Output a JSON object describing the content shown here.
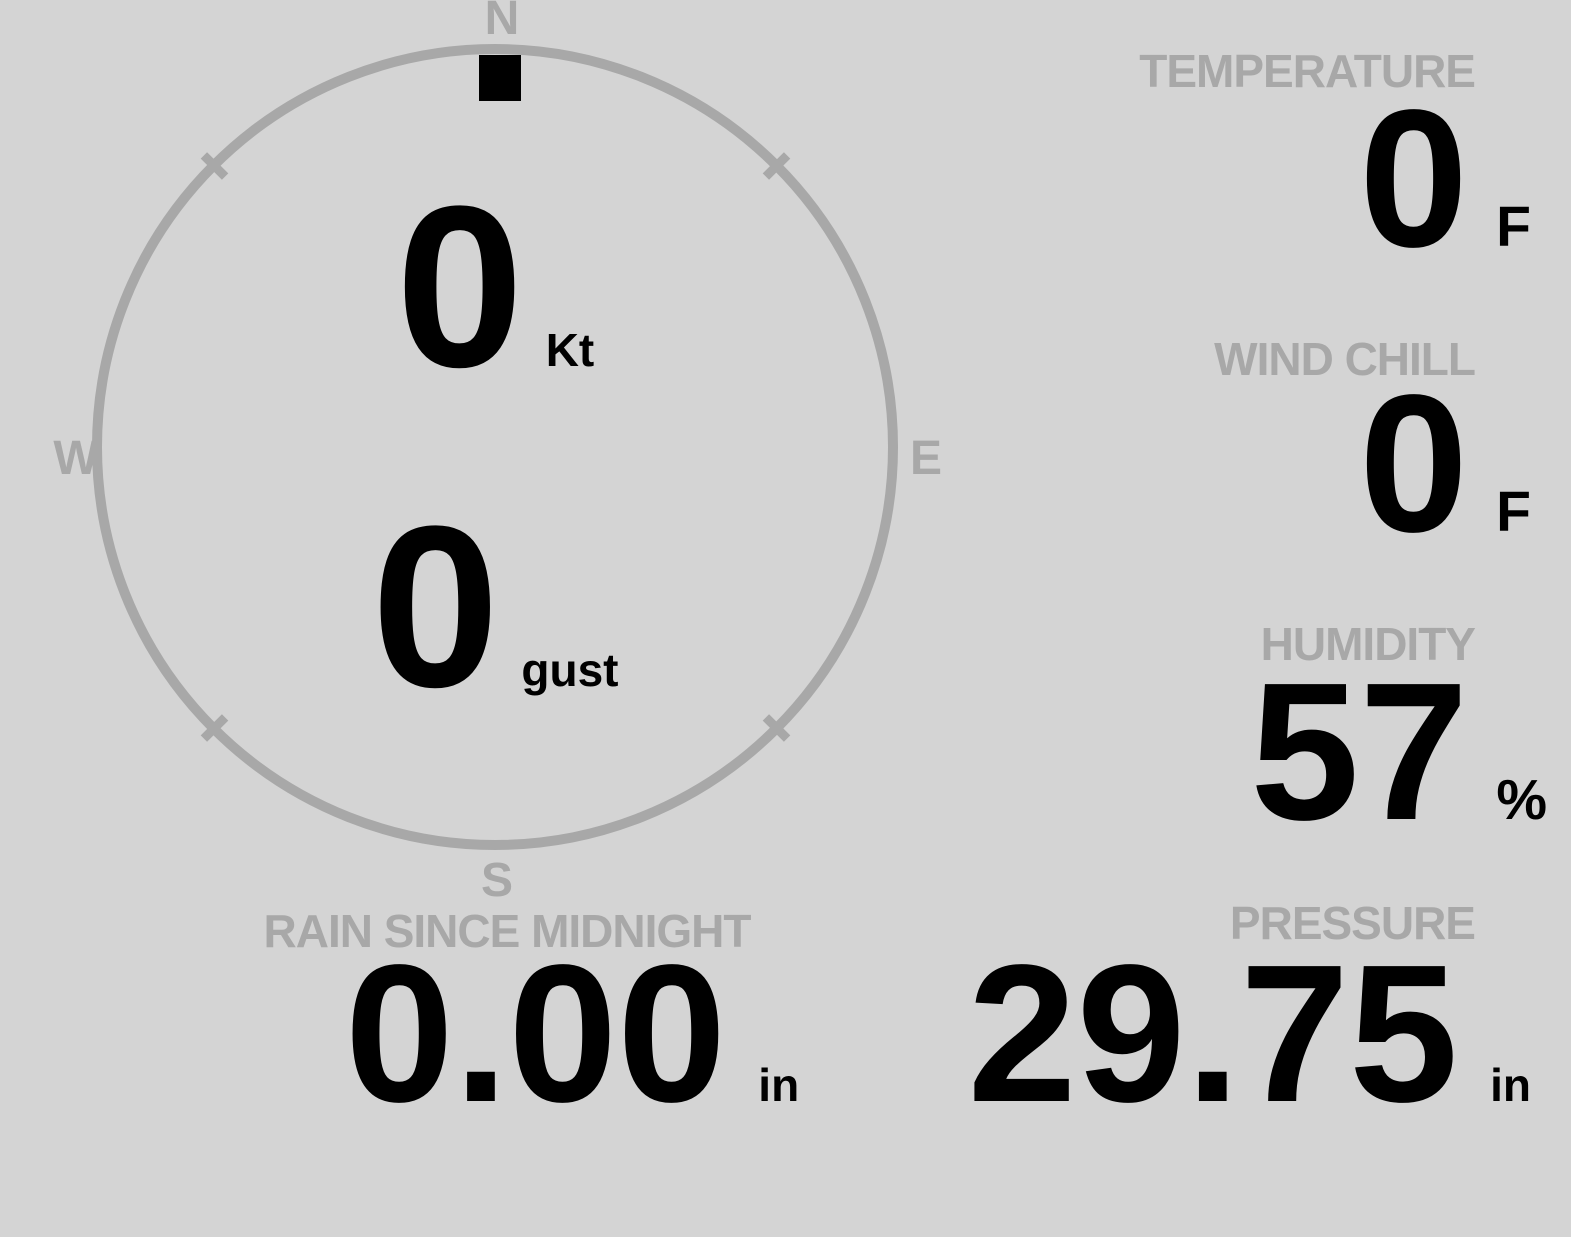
{
  "colors": {
    "background": "#d4d4d4",
    "muted": "#a8a8a8",
    "value": "#000000"
  },
  "compass": {
    "cardinals": {
      "north": "N",
      "east": "E",
      "south": "S",
      "west": "W"
    },
    "wind_direction": "N",
    "wind_speed": {
      "value": "0",
      "unit": "Kt"
    },
    "wind_gust": {
      "value": "0",
      "unit": "gust"
    }
  },
  "metrics": {
    "temperature": {
      "label": "TEMPERATURE",
      "value": "0",
      "unit": "F"
    },
    "wind_chill": {
      "label": "WIND CHILL",
      "value": "0",
      "unit": "F"
    },
    "humidity": {
      "label": "HUMIDITY",
      "value": "57",
      "unit": "%"
    },
    "rain_since_midnight": {
      "label": "RAIN SINCE MIDNIGHT",
      "value": "0.00",
      "unit": "in"
    },
    "pressure": {
      "label": "PRESSURE",
      "value": "29.75",
      "unit": "in"
    }
  }
}
